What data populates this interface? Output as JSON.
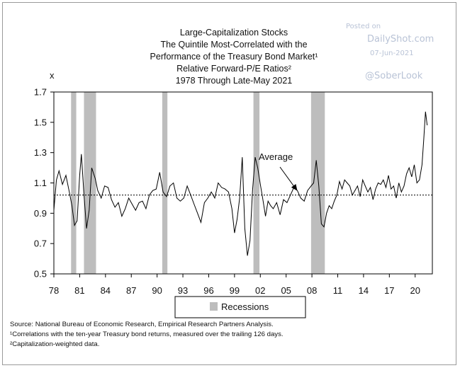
{
  "watermark": {
    "posted_on": "Posted on",
    "site": "DailyShot.com",
    "date": "07-Jun-2021",
    "handle": "@SoberLook"
  },
  "chart_data": {
    "type": "line",
    "title_lines": [
      "Large-Capitalization Stocks",
      "The Quintile Most-Correlated with the",
      "Performance of the Treasury Bond Market¹",
      "Relative Forward-P/E Ratios²",
      "1978 Through Late-May 2021"
    ],
    "y_unit_label": "x",
    "ylim": [
      0.5,
      1.7
    ],
    "xlim": [
      1978,
      2022
    ],
    "y_ticks": [
      {
        "value": 0.5,
        "label": "0.5"
      },
      {
        "value": 0.7,
        "label": "0.7"
      },
      {
        "value": 0.9,
        "label": "0.9"
      },
      {
        "value": 1.1,
        "label": "1.1"
      },
      {
        "value": 1.3,
        "label": "1.3"
      },
      {
        "value": 1.5,
        "label": "1.5"
      },
      {
        "value": 1.7,
        "label": "1.7"
      }
    ],
    "x_ticks": [
      {
        "value": 1978,
        "label": "78"
      },
      {
        "value": 1981,
        "label": "81"
      },
      {
        "value": 1984,
        "label": "84"
      },
      {
        "value": 1987,
        "label": "87"
      },
      {
        "value": 1990,
        "label": "90"
      },
      {
        "value": 1993,
        "label": "93"
      },
      {
        "value": 1996,
        "label": "96"
      },
      {
        "value": 1999,
        "label": "99"
      },
      {
        "value": 2002,
        "label": "02"
      },
      {
        "value": 2005,
        "label": "05"
      },
      {
        "value": 2008,
        "label": "08"
      },
      {
        "value": 2011,
        "label": "11"
      },
      {
        "value": 2014,
        "label": "14"
      },
      {
        "value": 2017,
        "label": "17"
      },
      {
        "value": 2020,
        "label": "20"
      }
    ],
    "average": {
      "label": "Average",
      "value": 1.02
    },
    "recessions": [
      [
        1980.0,
        1980.6
      ],
      [
        1981.5,
        1982.9
      ],
      [
        1990.6,
        1991.2
      ],
      [
        2001.2,
        2001.9
      ],
      [
        2007.9,
        2009.5
      ]
    ],
    "legend": {
      "recessions_label": "Recessions",
      "recession_color": "#bdbdbd"
    },
    "line_color": "#000000",
    "series": [
      {
        "x": [
          1978.0,
          1978.3,
          1978.6,
          1979.0,
          1979.4,
          1979.8,
          1980.1,
          1980.4,
          1980.7,
          1981.0,
          1981.2,
          1981.5,
          1981.8,
          1982.1,
          1982.4,
          1982.8,
          1983.1,
          1983.5,
          1983.9,
          1984.3,
          1984.7,
          1985.1,
          1985.5,
          1985.9,
          1986.3,
          1986.7,
          1987.1,
          1987.5,
          1987.9,
          1988.3,
          1988.7,
          1989.1,
          1989.5,
          1989.9,
          1990.3,
          1990.7,
          1991.1,
          1991.5,
          1991.9,
          1992.3,
          1992.7,
          1993.1,
          1993.5,
          1993.9,
          1994.3,
          1994.7,
          1995.1,
          1995.5,
          1995.9,
          1996.3,
          1996.7,
          1997.1,
          1997.5,
          1997.9,
          1998.3,
          1998.7,
          1999.0,
          1999.3,
          1999.6,
          1999.9,
          2000.2,
          2000.5,
          2000.8,
          2001.1,
          2001.4,
          2001.7,
          2002.0,
          2002.3,
          2002.6,
          2002.9,
          2003.2,
          2003.5,
          2003.9,
          2004.3,
          2004.7,
          2005.1,
          2005.5,
          2005.9,
          2006.3,
          2006.7,
          2007.1,
          2007.5,
          2007.9,
          2008.2,
          2008.5,
          2008.8,
          2009.1,
          2009.4,
          2009.7,
          2010.0,
          2010.3,
          2010.6,
          2010.9,
          2011.2,
          2011.5,
          2011.8,
          2012.1,
          2012.4,
          2012.7,
          2013.0,
          2013.3,
          2013.6,
          2013.9,
          2014.2,
          2014.5,
          2014.8,
          2015.1,
          2015.4,
          2015.7,
          2016.0,
          2016.3,
          2016.6,
          2016.9,
          2017.2,
          2017.5,
          2017.8,
          2018.1,
          2018.4,
          2018.7,
          2019.0,
          2019.3,
          2019.6,
          2019.9,
          2020.2,
          2020.5,
          2020.8,
          2021.0,
          2021.2,
          2021.4
        ],
        "y": [
          0.92,
          1.12,
          1.18,
          1.09,
          1.15,
          1.04,
          0.95,
          0.82,
          0.85,
          1.15,
          1.29,
          1.02,
          0.8,
          0.92,
          1.2,
          1.13,
          1.05,
          1.0,
          1.08,
          1.07,
          0.99,
          0.94,
          0.97,
          0.88,
          0.93,
          1.0,
          0.96,
          0.92,
          0.97,
          0.98,
          0.93,
          1.02,
          1.05,
          1.06,
          1.17,
          1.04,
          1.01,
          1.08,
          1.1,
          1.0,
          0.98,
          1.0,
          1.08,
          1.02,
          0.96,
          0.9,
          0.84,
          0.97,
          1.0,
          1.04,
          1.0,
          1.1,
          1.07,
          1.06,
          1.04,
          0.93,
          0.77,
          0.86,
          1.0,
          1.27,
          0.8,
          0.62,
          0.72,
          1.05,
          1.27,
          1.2,
          1.09,
          0.99,
          0.88,
          0.98,
          0.95,
          0.93,
          0.97,
          0.89,
          0.99,
          0.97,
          1.02,
          1.07,
          1.05,
          1.0,
          0.98,
          1.05,
          1.08,
          1.1,
          1.25,
          1.08,
          0.83,
          0.81,
          0.9,
          0.95,
          0.93,
          0.98,
          1.02,
          1.11,
          1.06,
          1.12,
          1.1,
          1.08,
          1.02,
          1.05,
          1.08,
          1.01,
          1.12,
          1.08,
          1.04,
          1.07,
          0.99,
          1.06,
          1.1,
          1.09,
          1.12,
          1.07,
          1.15,
          1.06,
          1.08,
          1.0,
          1.1,
          1.04,
          1.08,
          1.16,
          1.2,
          1.14,
          1.22,
          1.1,
          1.12,
          1.22,
          1.39,
          1.57,
          1.48
        ]
      }
    ]
  },
  "footnotes": {
    "source": "Source: National Bureau of Economic Research, Empirical Research Partners Analysis.",
    "note1": "¹Correlations with the ten-year Treasury bond returns, measured over the trailing 126 days.",
    "note2": "²Capitalization-weighted data."
  }
}
